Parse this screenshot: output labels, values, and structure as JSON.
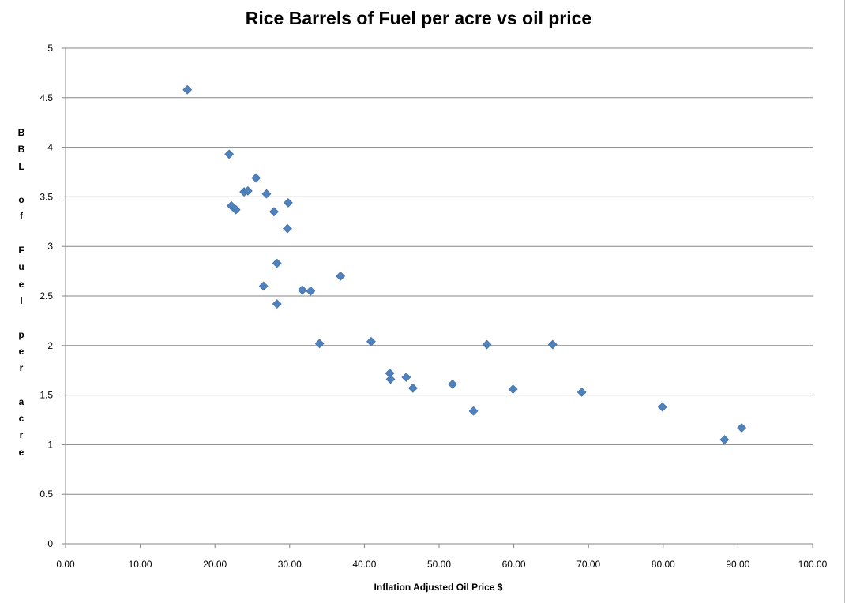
{
  "chart_data": {
    "type": "scatter",
    "title": "Rice Barrels of Fuel per acre vs oil price",
    "xlabel": "Inflation Adjusted Oil Price $",
    "ylabel": "BBL of Fuel per acre",
    "xlim": [
      0,
      100
    ],
    "ylim": [
      0,
      5
    ],
    "x_ticks": [
      "0.00",
      "10.00",
      "20.00",
      "30.00",
      "40.00",
      "50.00",
      "60.00",
      "70.00",
      "80.00",
      "90.00",
      "100.00"
    ],
    "y_ticks": [
      "0",
      "0.5",
      "1",
      "1.5",
      "2",
      "2.5",
      "3",
      "3.5",
      "4",
      "4.5",
      "5"
    ],
    "grid": "horizontal",
    "legend": "none",
    "marker": "diamond",
    "color": "#4f81bd",
    "points": [
      {
        "x": 16.3,
        "y": 4.58
      },
      {
        "x": 21.9,
        "y": 3.93
      },
      {
        "x": 22.2,
        "y": 3.41
      },
      {
        "x": 22.8,
        "y": 3.37
      },
      {
        "x": 23.9,
        "y": 3.55
      },
      {
        "x": 24.4,
        "y": 3.56
      },
      {
        "x": 25.5,
        "y": 3.69
      },
      {
        "x": 26.5,
        "y": 2.6
      },
      {
        "x": 26.9,
        "y": 3.53
      },
      {
        "x": 27.9,
        "y": 3.35
      },
      {
        "x": 28.3,
        "y": 2.83
      },
      {
        "x": 28.3,
        "y": 2.42
      },
      {
        "x": 29.7,
        "y": 3.18
      },
      {
        "x": 29.8,
        "y": 3.44
      },
      {
        "x": 31.7,
        "y": 2.56
      },
      {
        "x": 32.8,
        "y": 2.55
      },
      {
        "x": 34.0,
        "y": 2.02
      },
      {
        "x": 36.8,
        "y": 2.7
      },
      {
        "x": 40.9,
        "y": 2.04
      },
      {
        "x": 43.4,
        "y": 1.72
      },
      {
        "x": 43.5,
        "y": 1.66
      },
      {
        "x": 45.6,
        "y": 1.68
      },
      {
        "x": 46.5,
        "y": 1.57
      },
      {
        "x": 51.8,
        "y": 1.61
      },
      {
        "x": 54.6,
        "y": 1.34
      },
      {
        "x": 56.4,
        "y": 2.01
      },
      {
        "x": 59.9,
        "y": 1.56
      },
      {
        "x": 65.2,
        "y": 2.01
      },
      {
        "x": 69.1,
        "y": 1.53
      },
      {
        "x": 79.9,
        "y": 1.38
      },
      {
        "x": 88.2,
        "y": 1.05
      },
      {
        "x": 90.5,
        "y": 1.17
      }
    ]
  }
}
